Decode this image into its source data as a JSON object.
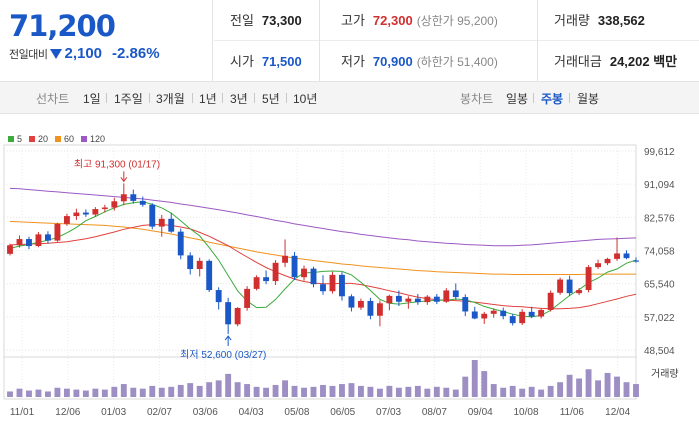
{
  "quote": {
    "price": "71,200",
    "change_label": "전일대비",
    "change_value": "2,100",
    "change_pct": "-2.86%",
    "colors": {
      "up": "#d12f2f",
      "down": "#1b58c7"
    }
  },
  "stats": {
    "prev_close_label": "전일",
    "prev_close": "73,300",
    "high_label": "고가",
    "high": "72,300",
    "upper_limit": "(상한가 95,200)",
    "volume_label": "거래량",
    "volume": "338,562",
    "open_label": "시가",
    "open": "71,500",
    "low_label": "저가",
    "low": "70,900",
    "lower_limit": "(하한가 51,400)",
    "amount_label": "거래대금",
    "amount": "24,202 백만"
  },
  "period_tabs": {
    "label": "선차트",
    "items": [
      "1일",
      "1주일",
      "3개월",
      "1년",
      "3년",
      "5년",
      "10년"
    ]
  },
  "candle_tabs": {
    "label": "봉차트",
    "items": [
      "일봉",
      "주봉",
      "월봉"
    ],
    "active": "주봉"
  },
  "legend": [
    {
      "name": "5",
      "color": "#3caa3c"
    },
    {
      "name": "20",
      "color": "#e0413c"
    },
    {
      "name": "60",
      "color": "#f0921e"
    },
    {
      "name": "120",
      "color": "#9b59c4"
    }
  ],
  "annotations": {
    "high": "최고 91,300 (01/17)",
    "low": "최저 52,600 (03/27)"
  },
  "volume_label": "거래량",
  "chart_data": {
    "type": "candlestick",
    "y_ticks": [
      "99,612",
      "91,094",
      "82,576",
      "74,058",
      "65,540",
      "57,022",
      "48,504"
    ],
    "ylim": [
      48504,
      99612
    ],
    "x_ticks": [
      "11/01",
      "12/06",
      "01/03",
      "02/07",
      "03/06",
      "04/03",
      "05/08",
      "06/05",
      "07/03",
      "08/07",
      "09/04",
      "10/08",
      "11/06",
      "12/04"
    ],
    "candles": [
      [
        73200,
        75800,
        72800,
        75400
      ],
      [
        75400,
        77900,
        74800,
        77000
      ],
      [
        77000,
        77600,
        74400,
        75200
      ],
      [
        75200,
        78800,
        74900,
        78200
      ],
      [
        78200,
        79000,
        75800,
        76600
      ],
      [
        76600,
        81200,
        76300,
        80900
      ],
      [
        80900,
        83500,
        80400,
        82900
      ],
      [
        82900,
        84800,
        81900,
        83800
      ],
      [
        83800,
        84600,
        82700,
        83300
      ],
      [
        83300,
        85200,
        82700,
        84700
      ],
      [
        84700,
        85800,
        83800,
        85100
      ],
      [
        85100,
        87600,
        84300,
        86700
      ],
      [
        86700,
        91300,
        85700,
        88500
      ],
      [
        88500,
        89700,
        86100,
        86800
      ],
      [
        86800,
        87900,
        85300,
        85800
      ],
      [
        85800,
        86200,
        79500,
        80200
      ],
      [
        80200,
        83200,
        77600,
        82200
      ],
      [
        82200,
        83700,
        78600,
        78900
      ],
      [
        78900,
        79700,
        71800,
        72800
      ],
      [
        72800,
        73600,
        67900,
        69300
      ],
      [
        69300,
        72200,
        67400,
        71400
      ],
      [
        71400,
        71800,
        63400,
        63900
      ],
      [
        63900,
        64600,
        58900,
        60800
      ],
      [
        60800,
        61900,
        52600,
        55100
      ],
      [
        55100,
        59500,
        54600,
        59300
      ],
      [
        59300,
        64900,
        58600,
        64200
      ],
      [
        64200,
        67700,
        63800,
        67200
      ],
      [
        67200,
        68900,
        65400,
        66200
      ],
      [
        66200,
        71600,
        65200,
        70900
      ],
      [
        70900,
        76900,
        69800,
        72700
      ],
      [
        72700,
        73700,
        66500,
        67200
      ],
      [
        67200,
        70200,
        66300,
        69400
      ],
      [
        69400,
        69900,
        64600,
        65400
      ],
      [
        65400,
        67700,
        62700,
        63600
      ],
      [
        63600,
        68600,
        63000,
        67800
      ],
      [
        67800,
        68500,
        61200,
        62300
      ],
      [
        62300,
        62800,
        58400,
        59400
      ],
      [
        59400,
        61700,
        58800,
        61100
      ],
      [
        61100,
        61900,
        56400,
        57300
      ],
      [
        57300,
        61200,
        54600,
        60500
      ],
      [
        60500,
        62700,
        58700,
        62400
      ],
      [
        62400,
        63800,
        59800,
        60900
      ],
      [
        60900,
        62300,
        59100,
        61700
      ],
      [
        61700,
        62900,
        60100,
        60800
      ],
      [
        60800,
        62600,
        60100,
        62200
      ],
      [
        62200,
        62900,
        60300,
        60900
      ],
      [
        60900,
        64400,
        60600,
        63800
      ],
      [
        63800,
        65600,
        61400,
        62100
      ],
      [
        62100,
        62800,
        57200,
        58400
      ],
      [
        58400,
        59600,
        56400,
        56600
      ],
      [
        56600,
        58300,
        55200,
        57800
      ],
      [
        57800,
        59200,
        56800,
        58600
      ],
      [
        58600,
        59400,
        56400,
        57200
      ],
      [
        57200,
        57800,
        54800,
        55400
      ],
      [
        55400,
        59000,
        54900,
        58300
      ],
      [
        58300,
        59600,
        56700,
        57100
      ],
      [
        57100,
        59200,
        56600,
        58800
      ],
      [
        58800,
        63800,
        58400,
        63200
      ],
      [
        63200,
        67100,
        62700,
        66600
      ],
      [
        66600,
        67600,
        62400,
        63100
      ],
      [
        63100,
        64400,
        62600,
        63900
      ],
      [
        63900,
        70300,
        63300,
        69800
      ],
      [
        69800,
        71700,
        69300,
        70800
      ],
      [
        70800,
        72200,
        70300,
        71900
      ],
      [
        71900,
        77400,
        71400,
        73300
      ],
      [
        73300,
        74100,
        71800,
        72100
      ],
      [
        71500,
        72300,
        70900,
        71200
      ]
    ],
    "volumes": [
      6,
      9,
      7,
      8,
      6,
      10,
      9,
      8,
      7,
      9,
      8,
      11,
      14,
      10,
      9,
      12,
      10,
      11,
      13,
      15,
      12,
      16,
      18,
      25,
      16,
      14,
      11,
      10,
      13,
      18,
      12,
      10,
      11,
      13,
      12,
      14,
      15,
      12,
      11,
      9,
      12,
      10,
      11,
      12,
      9,
      11,
      10,
      8,
      22,
      40,
      28,
      14,
      10,
      12,
      9,
      11,
      8,
      12,
      16,
      24,
      20,
      30,
      18,
      26,
      22,
      16,
      14
    ],
    "ma": {
      "5": [
        74600,
        75200,
        75600,
        76200,
        76700,
        77400,
        78600,
        80000,
        81700,
        82800,
        84000,
        85000,
        85900,
        86300,
        86600,
        85900,
        85000,
        83700,
        81700,
        79600,
        77800,
        74800,
        71600,
        67600,
        63700,
        61100,
        59400,
        59500,
        61500,
        64200,
        66700,
        68300,
        68400,
        68700,
        68800,
        68700,
        67800,
        65900,
        63800,
        61500,
        60500,
        60300,
        60600,
        60900,
        61100,
        61300,
        61300,
        61600,
        61400,
        60700,
        59700,
        59000,
        58400,
        57700,
        57200,
        57000,
        57400,
        58700,
        60600,
        62500,
        64000,
        65800,
        67000,
        68500,
        69300,
        70800,
        71600
      ],
      "20": [
        75500,
        75600,
        75700,
        75800,
        75900,
        76100,
        76300,
        76700,
        77100,
        77600,
        78200,
        78800,
        79500,
        80000,
        80500,
        80700,
        80700,
        80500,
        80100,
        79600,
        78700,
        77700,
        76500,
        75300,
        73800,
        72400,
        71000,
        69700,
        68600,
        67600,
        66700,
        66100,
        65700,
        65500,
        65500,
        65600,
        65600,
        65300,
        64800,
        64300,
        63700,
        63200,
        62600,
        62100,
        61700,
        61400,
        61300,
        61200,
        61000,
        60800,
        60500,
        60200,
        59900,
        59700,
        59600,
        59400,
        59200,
        59100,
        59100,
        59200,
        59400,
        59800,
        60400,
        61000,
        61600,
        62300,
        62800
      ],
      "60": [
        81500,
        81400,
        81300,
        81200,
        81100,
        81000,
        80900,
        80800,
        80700,
        80600,
        80500,
        80300,
        80100,
        79800,
        79500,
        79100,
        78700,
        78300,
        77800,
        77300,
        76800,
        76200,
        75700,
        75200,
        74700,
        74200,
        73700,
        73300,
        72900,
        72500,
        72100,
        71800,
        71500,
        71200,
        70900,
        70600,
        70400,
        70100,
        69900,
        69700,
        69500,
        69300,
        69100,
        68900,
        68800,
        68600,
        68500,
        68400,
        68300,
        68200,
        68100,
        68000,
        68000,
        67900,
        67900,
        67900,
        67900,
        67900,
        67900,
        67900,
        67900,
        68000,
        68000,
        68000,
        68000,
        68000,
        68000
      ],
      "120": [
        90000,
        89900,
        89700,
        89500,
        89300,
        89100,
        88900,
        88700,
        88500,
        88300,
        88100,
        87900,
        87700,
        87500,
        87300,
        87000,
        86700,
        86400,
        86000,
        85700,
        85300,
        84900,
        84500,
        84100,
        83700,
        83200,
        82800,
        82300,
        81800,
        81400,
        80900,
        80500,
        80100,
        79700,
        79300,
        78900,
        78600,
        78200,
        77900,
        77600,
        77300,
        77000,
        76800,
        76500,
        76300,
        76100,
        75900,
        75800,
        75600,
        75500,
        75400,
        75300,
        75300,
        75300,
        75400,
        75500,
        75700,
        75900,
        76100,
        76300,
        76500,
        76700,
        76900,
        77000,
        77100,
        77200,
        77300
      ]
    }
  }
}
